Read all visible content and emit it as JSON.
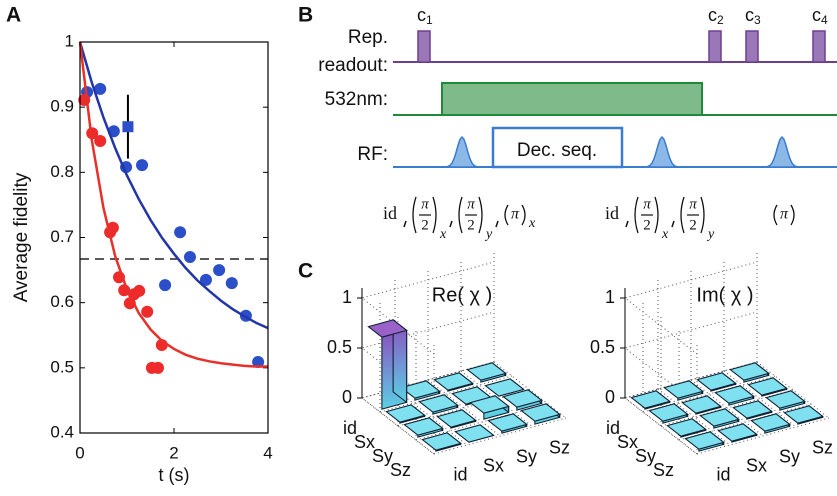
{
  "panel_labels": [
    "A",
    "B",
    "C"
  ],
  "chart_data": [
    {
      "type": "scatter",
      "xlabel": "t (s)",
      "ylabel": "Average fidelity",
      "xlim": [
        0,
        4
      ],
      "ylim": [
        0.4,
        1
      ],
      "xticks": [
        0,
        2,
        4
      ],
      "yticks": [
        0.4,
        0.5,
        0.6,
        0.7,
        0.8,
        0.9,
        1
      ],
      "threshold": 0.667,
      "series": [
        {
          "color": "#2a4fc8",
          "marker": "circle",
          "x": [
            0.15,
            0.43,
            0.72,
            0.98,
            1.32,
            1.81,
            2.13,
            2.34,
            2.68,
            2.96,
            3.23,
            3.53,
            3.79
          ],
          "values": [
            0.923,
            0.928,
            0.863,
            0.808,
            0.811,
            0.627,
            0.708,
            0.67,
            0.635,
            0.65,
            0.63,
            0.58,
            0.509
          ]
        },
        {
          "color": "#ee2a2a",
          "marker": "circle",
          "x": [
            0.09,
            0.26,
            0.43,
            0.64,
            0.7,
            0.83,
            0.94,
            1.06,
            1.15,
            1.26,
            1.43,
            1.53,
            1.66,
            1.74
          ],
          "values": [
            0.911,
            0.86,
            0.848,
            0.708,
            0.715,
            0.639,
            0.619,
            0.599,
            0.613,
            0.618,
            0.586,
            0.5,
            0.5,
            0.535
          ]
        },
        {
          "color": "#2a4fc8",
          "marker": "square",
          "x": [
            1.02
          ],
          "values": [
            0.87
          ],
          "errors": [
            0.049
          ]
        },
        {
          "color": "#2236a8",
          "marker": "line",
          "x": [
            0,
            0.25,
            0.5,
            0.75,
            1,
            1.25,
            1.5,
            1.75,
            2,
            2.25,
            2.5,
            2.75,
            3,
            3.25,
            3.5,
            3.75,
            4
          ],
          "values": [
            1,
            0.938,
            0.884,
            0.837,
            0.795,
            0.759,
            0.727,
            0.699,
            0.675,
            0.653,
            0.634,
            0.618,
            0.603,
            0.59,
            0.579,
            0.569,
            0.561
          ]
        },
        {
          "color": "#e8302a",
          "marker": "line",
          "x": [
            0,
            0.25,
            0.5,
            0.75,
            1,
            1.25,
            1.5,
            1.75,
            2,
            2.25,
            2.5,
            2.75,
            3,
            3.25,
            3.5,
            3.75,
            4
          ],
          "values": [
            1,
            0.85,
            0.745,
            0.671,
            0.62,
            0.584,
            0.559,
            0.541,
            0.529,
            0.52,
            0.514,
            0.51,
            0.507,
            0.505,
            0.503,
            0.502,
            0.502
          ]
        }
      ]
    },
    {
      "type": "bar3d",
      "title": "Re( χ )",
      "row_labels": [
        "id",
        "Sx",
        "Sy",
        "Sz"
      ],
      "col_labels": [
        "id",
        "Sx",
        "Sy",
        "Sz"
      ],
      "zlim": [
        0,
        1
      ],
      "zticks": [
        0,
        0.5,
        1
      ],
      "color": "#5cd0e4",
      "values": [
        [
          0.72,
          0.02,
          0.01,
          0.02
        ],
        [
          0.01,
          0.02,
          0.01,
          0.0
        ],
        [
          0.02,
          0.01,
          0.06,
          0.03
        ],
        [
          0.01,
          0.0,
          0.02,
          0.03
        ]
      ]
    },
    {
      "type": "bar3d",
      "title": "Im( χ )",
      "row_labels": [
        "id",
        "Sx",
        "Sy",
        "Sz"
      ],
      "col_labels": [
        "id",
        "Sx",
        "Sy",
        "Sz"
      ],
      "zlim": [
        0,
        1
      ],
      "zticks": [
        0,
        0.5,
        1
      ],
      "color": "#5cd0e4",
      "values": [
        [
          0.01,
          0.02,
          0.01,
          0.02
        ],
        [
          0.02,
          0.01,
          0.02,
          0.01
        ],
        [
          0.01,
          0.02,
          0.01,
          0.02
        ],
        [
          0.02,
          0.01,
          0.02,
          0.01
        ]
      ]
    }
  ],
  "diagram": {
    "rows": [
      "Rep.",
      "readout:",
      "532nm:",
      "RF:"
    ],
    "box": "Dec. seq.",
    "readouts": [
      {
        "base": "c",
        "sub": "1"
      },
      {
        "base": "c",
        "sub": "2"
      },
      {
        "base": "c",
        "sub": "3"
      },
      {
        "base": "c",
        "sub": "4"
      }
    ],
    "seq_labels": [
      {
        "prefix": "id",
        "terms": [
          {
            "num": "π",
            "den": "2",
            "sub": "x"
          },
          {
            "num": "π",
            "den": "2",
            "sub": "y"
          },
          {
            "num": "π",
            "sub": "x"
          }
        ]
      },
      {
        "prefix": "id",
        "terms": [
          {
            "num": "π",
            "den": "2",
            "sub": "x"
          },
          {
            "num": "π",
            "den": "2",
            "sub": "y"
          }
        ]
      },
      {
        "terms": [
          {
            "num": "π"
          }
        ]
      }
    ]
  }
}
